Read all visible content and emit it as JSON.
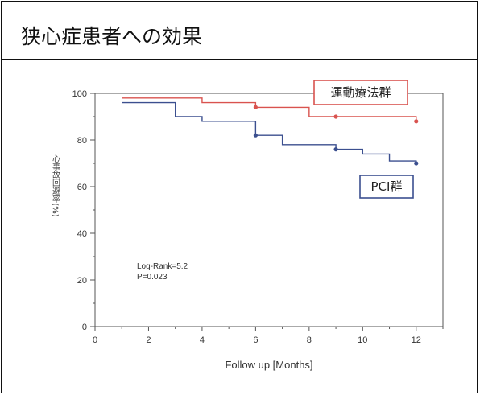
{
  "title": "狭心症患者への効果",
  "chart_data": {
    "type": "line",
    "step": true,
    "xlabel": "Follow up [Months]",
    "ylabel": "心事故回避率(%)",
    "xlim": [
      0,
      13
    ],
    "ylim": [
      0,
      100
    ],
    "xticks": [
      0,
      2,
      4,
      6,
      8,
      10,
      12
    ],
    "yticks": [
      0,
      20,
      40,
      60,
      80,
      100
    ],
    "grid": false,
    "annotations": [
      "Log-Rank=5.2",
      "P=0.023"
    ],
    "series": [
      {
        "name": "運動療法群",
        "color": "#d9534f",
        "x": [
          1,
          4,
          6,
          8,
          9,
          12
        ],
        "y": [
          98,
          96,
          94,
          90,
          90,
          88
        ],
        "markers": [
          [
            6,
            94
          ],
          [
            9,
            90
          ],
          [
            12,
            88
          ]
        ]
      },
      {
        "name": "PCI群",
        "color": "#3b4f8f",
        "x": [
          1,
          3,
          4,
          6,
          7,
          9,
          10,
          11,
          12
        ],
        "y": [
          96,
          90,
          88,
          82,
          78,
          76,
          74,
          71,
          70
        ],
        "markers": [
          [
            6,
            82
          ],
          [
            9,
            76
          ],
          [
            12,
            70
          ]
        ]
      }
    ]
  }
}
